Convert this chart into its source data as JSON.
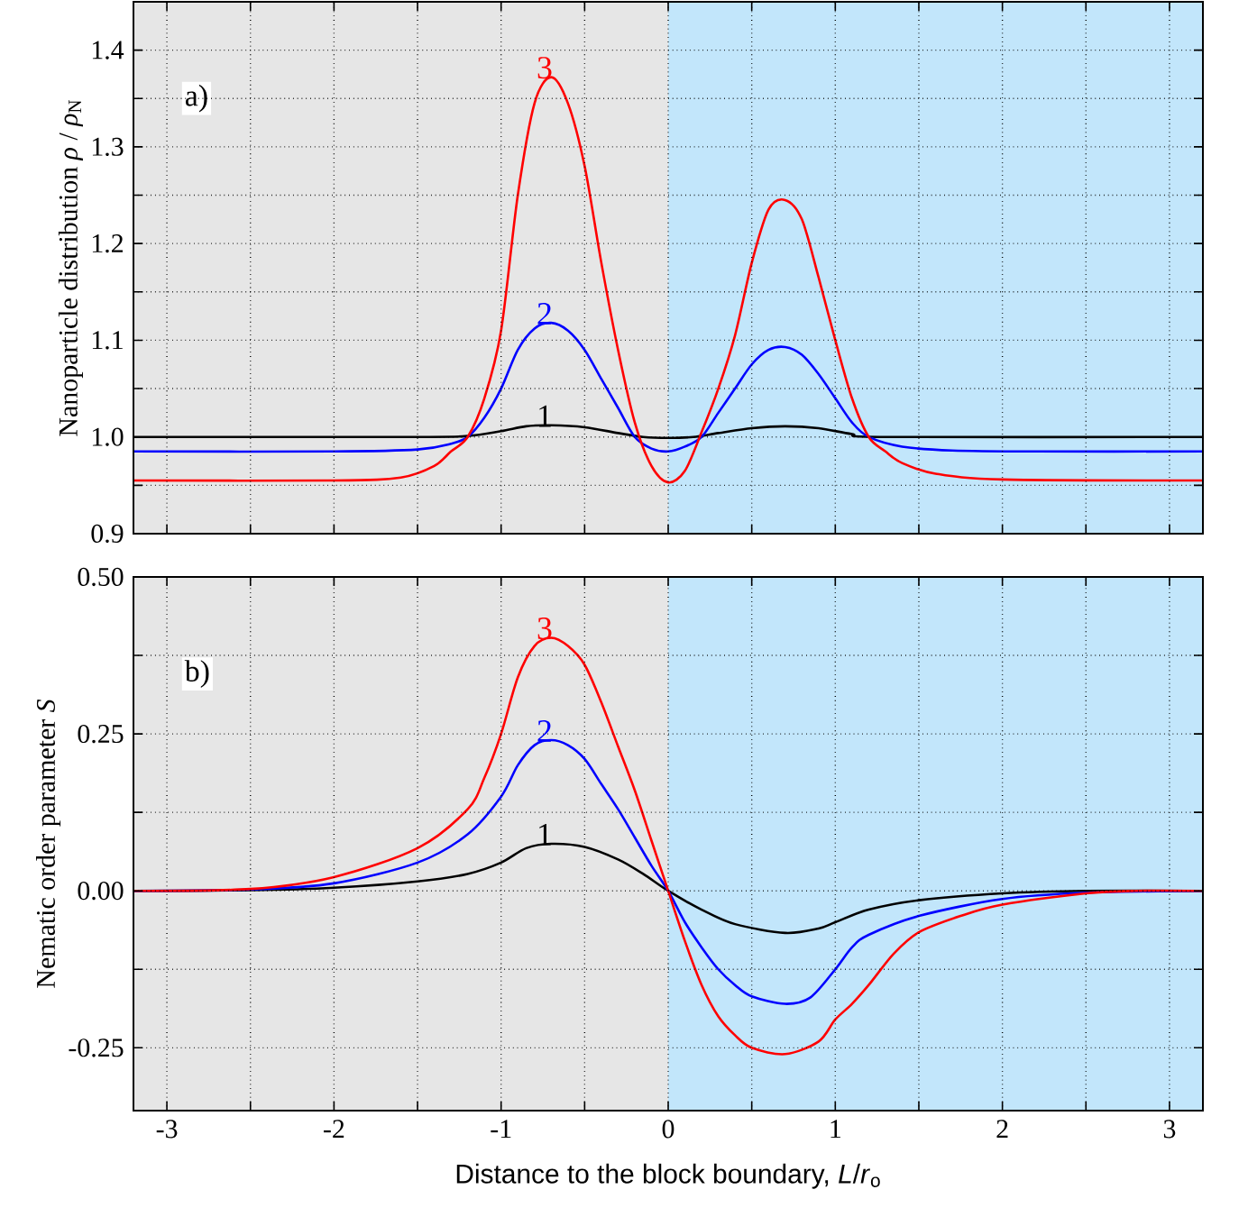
{
  "chart_data": [
    {
      "type": "line",
      "ylabel": "Nanoparticle distribution *ρ* / *ρ*$_{N}$",
      "annotations": [
        "a)"
      ],
      "xlim": [
        -3.2,
        3.2
      ],
      "ylim": [
        0.9,
        1.45
      ],
      "tick_labels": "y",
      "grid": true,
      "xticks": [
        {
          "value": -3,
          "label": null
        },
        {
          "value": -2.5,
          "label": null
        },
        {
          "value": -2,
          "label": null
        },
        {
          "value": -1.5,
          "label": null
        },
        {
          "value": -1,
          "label": null
        },
        {
          "value": -0.5,
          "label": null
        },
        {
          "value": 0,
          "label": null
        },
        {
          "value": 0.5,
          "label": null
        },
        {
          "value": 1,
          "label": null
        },
        {
          "value": 1.5,
          "label": null
        },
        {
          "value": 2,
          "label": null
        },
        {
          "value": 2.5,
          "label": null
        },
        {
          "value": 3,
          "label": null
        }
      ],
      "yticks": [
        0.9,
        {
          "value": 0.95,
          "label": null
        },
        {
          "value": 1.0,
          "label": "1.0"
        },
        {
          "value": 1.05,
          "label": null
        },
        1.1,
        {
          "value": 1.15,
          "label": null
        },
        1.2,
        {
          "value": 1.25,
          "label": null
        },
        1.3,
        {
          "value": 1.35,
          "label": null
        },
        1.4
      ],
      "bands": [
        {
          "axis": "x",
          "from": -3.2,
          "to": 0,
          "color": "#e6e6e6"
        },
        {
          "axis": "x",
          "from": 0,
          "to": 3.2,
          "color": "#c2e6fb"
        }
      ],
      "series": [
        {
          "name": "1",
          "color": "#000000",
          "x": [
            -3.2,
            -1.5,
            -1.2,
            -1.0,
            -0.85,
            -0.7,
            -0.5,
            -0.3,
            -0.15,
            0,
            0.15,
            0.3,
            0.5,
            0.7,
            0.9,
            1.1,
            1.3,
            3.2
          ],
          "values": [
            1.0,
            1.0,
            1.001,
            1.006,
            1.011,
            1.012,
            1.01,
            1.004,
            1.0,
            0.999,
            1.0,
            1.004,
            1.009,
            1.011,
            1.009,
            1.003,
            1.0,
            1.0
          ]
        },
        {
          "name": "2",
          "color": "#0000ff",
          "x": [
            -3.2,
            -2.0,
            -1.5,
            -1.3,
            -1.2,
            -1.1,
            -1.0,
            -0.9,
            -0.8,
            -0.7,
            -0.6,
            -0.5,
            -0.4,
            -0.3,
            -0.2,
            -0.1,
            0,
            0.1,
            0.2,
            0.3,
            0.4,
            0.5,
            0.6,
            0.7,
            0.8,
            0.9,
            1.0,
            1.1,
            1.2,
            1.4,
            1.7,
            2.2,
            3.2
          ],
          "values": [
            0.985,
            0.985,
            0.987,
            0.993,
            1.0,
            1.02,
            1.05,
            1.09,
            1.112,
            1.118,
            1.11,
            1.09,
            1.06,
            1.03,
            1.0,
            0.988,
            0.985,
            0.99,
            1.0,
            1.025,
            1.05,
            1.075,
            1.09,
            1.093,
            1.085,
            1.065,
            1.04,
            1.015,
            1.0,
            0.99,
            0.986,
            0.985,
            0.985
          ]
        },
        {
          "name": "3",
          "color": "#ff0000",
          "x": [
            -3.2,
            -2.0,
            -1.6,
            -1.4,
            -1.3,
            -1.2,
            -1.1,
            -1.0,
            -0.9,
            -0.8,
            -0.7,
            -0.6,
            -0.5,
            -0.4,
            -0.3,
            -0.2,
            -0.1,
            0,
            0.1,
            0.2,
            0.3,
            0.4,
            0.5,
            0.6,
            0.7,
            0.8,
            0.9,
            1.0,
            1.1,
            1.2,
            1.3,
            1.4,
            1.6,
            2.0,
            3.2
          ],
          "values": [
            0.955,
            0.955,
            0.958,
            0.97,
            0.985,
            1.0,
            1.04,
            1.11,
            1.25,
            1.345,
            1.372,
            1.345,
            1.28,
            1.18,
            1.09,
            1.015,
            0.97,
            0.953,
            0.965,
            1.005,
            1.05,
            1.105,
            1.18,
            1.235,
            1.245,
            1.225,
            1.165,
            1.1,
            1.04,
            1.0,
            0.985,
            0.973,
            0.962,
            0.956,
            0.955
          ]
        }
      ]
    },
    {
      "type": "line",
      "ylabel": "Nematic order parameter *S*",
      "xlabel": "Distance to the block boundary, *L*/*r*$_{o}$",
      "annotations": [
        "b)"
      ],
      "xlim": [
        -3.2,
        3.2
      ],
      "ylim": [
        -0.35,
        0.5
      ],
      "grid": true,
      "xticks": [
        -3,
        {
          "value": -2.5,
          "label": null
        },
        -2,
        {
          "value": -1.5,
          "label": null
        },
        -1,
        {
          "value": -0.5,
          "label": null
        },
        0,
        {
          "value": 0.5,
          "label": null
        },
        1,
        {
          "value": 1.5,
          "label": null
        },
        2,
        {
          "value": 2.5,
          "label": null
        },
        3
      ],
      "yticks": [
        {
          "value": -0.25,
          "label": "-0.25"
        },
        {
          "value": -0.125,
          "label": null
        },
        {
          "value": 0,
          "label": "0.00"
        },
        {
          "value": 0.125,
          "label": null
        },
        0.25,
        {
          "value": 0.375,
          "label": null
        },
        {
          "value": 0.5,
          "label": "0.50"
        }
      ],
      "bands": [
        {
          "axis": "x",
          "from": -3.2,
          "to": 0,
          "color": "#e6e6e6"
        },
        {
          "axis": "x",
          "from": 0,
          "to": 3.2,
          "color": "#c2e6fb"
        }
      ],
      "series": [
        {
          "name": "1",
          "color": "#000000",
          "x": [
            -3.2,
            -2.5,
            -2.0,
            -1.5,
            -1.2,
            -1.0,
            -0.85,
            -0.7,
            -0.5,
            -0.3,
            -0.15,
            0,
            0.2,
            0.4,
            0.7,
            0.9,
            1.0,
            1.2,
            1.5,
            2.0,
            2.5,
            3.2
          ],
          "values": [
            0,
            0.001,
            0.005,
            0.015,
            0.027,
            0.045,
            0.068,
            0.075,
            0.07,
            0.05,
            0.027,
            0,
            -0.03,
            -0.053,
            -0.067,
            -0.06,
            -0.05,
            -0.03,
            -0.015,
            -0.004,
            0,
            0
          ]
        },
        {
          "name": "2",
          "color": "#0000ff",
          "x": [
            -3.2,
            -2.5,
            -2.0,
            -1.5,
            -1.2,
            -1.0,
            -0.9,
            -0.8,
            -0.7,
            -0.6,
            -0.5,
            -0.4,
            -0.3,
            -0.2,
            -0.1,
            0,
            0.1,
            0.2,
            0.3,
            0.4,
            0.5,
            0.7,
            0.85,
            1.0,
            1.1,
            1.2,
            1.5,
            2.0,
            2.5,
            3.2
          ],
          "values": [
            0,
            0.002,
            0.012,
            0.045,
            0.09,
            0.15,
            0.2,
            0.232,
            0.24,
            0.232,
            0.21,
            0.17,
            0.13,
            0.085,
            0.04,
            0,
            -0.05,
            -0.09,
            -0.125,
            -0.15,
            -0.168,
            -0.18,
            -0.17,
            -0.125,
            -0.09,
            -0.07,
            -0.04,
            -0.013,
            -0.003,
            0
          ]
        },
        {
          "name": "3",
          "color": "#ff0000",
          "x": [
            -3.2,
            -2.5,
            -2.0,
            -1.5,
            -1.2,
            -1.1,
            -1.0,
            -0.9,
            -0.8,
            -0.7,
            -0.6,
            -0.5,
            -0.4,
            -0.3,
            -0.2,
            -0.1,
            0,
            0.1,
            0.2,
            0.3,
            0.4,
            0.5,
            0.7,
            0.9,
            1.0,
            1.1,
            1.2,
            1.35,
            1.5,
            1.75,
            2.0,
            2.5,
            2.8,
            3.2
          ],
          "values": [
            0,
            0.003,
            0.022,
            0.068,
            0.13,
            0.18,
            0.25,
            0.34,
            0.39,
            0.403,
            0.39,
            0.36,
            0.3,
            0.23,
            0.16,
            0.08,
            0,
            -0.08,
            -0.15,
            -0.2,
            -0.23,
            -0.25,
            -0.26,
            -0.24,
            -0.205,
            -0.18,
            -0.15,
            -0.1,
            -0.066,
            -0.04,
            -0.022,
            -0.004,
            0,
            0
          ]
        }
      ]
    }
  ]
}
